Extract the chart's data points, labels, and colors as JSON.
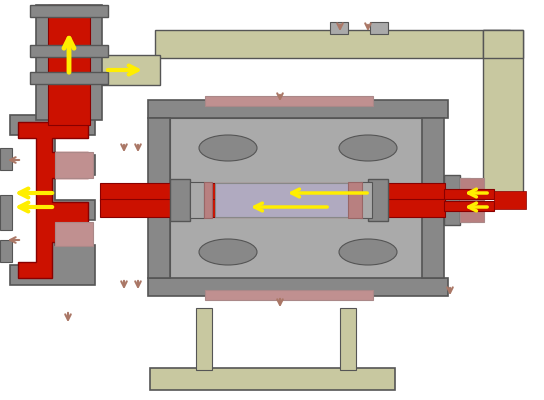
{
  "bg_color": "#ffffff",
  "gray_dark": "#555555",
  "gray_body": "#888888",
  "gray_light": "#aaaaaa",
  "red_main": "#cc1100",
  "pink_light": "#c09090",
  "pink_mid": "#b88080",
  "yellow_arrow": "#ffee00",
  "brown_arrow": "#aa7766",
  "lavender": "#b0aac0",
  "tan_pipe": "#c8c8a0",
  "fig_width": 5.44,
  "fig_height": 4.0,
  "dpi": 100
}
